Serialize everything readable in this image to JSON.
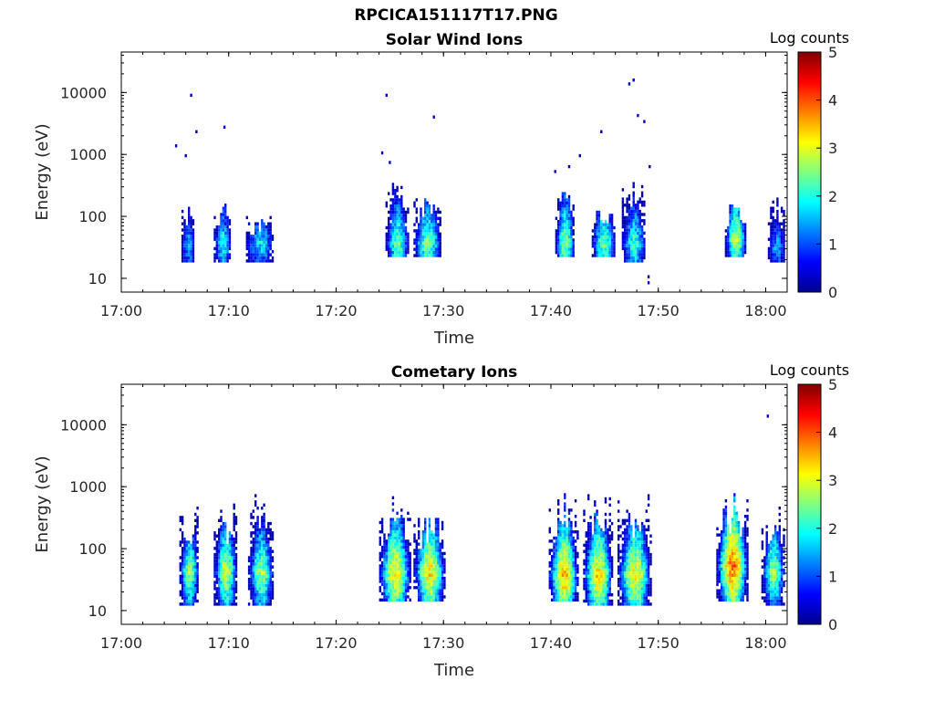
{
  "page_title": "RPCICA151117T17.PNG",
  "colors": {
    "colormap": [
      "#00008f",
      "#0000ff",
      "#0080ff",
      "#00ffff",
      "#80ff80",
      "#ffff00",
      "#ff8000",
      "#ff0000",
      "#800000"
    ],
    "axis": "#000000",
    "background": "#ffffff"
  },
  "chart_data": [
    {
      "type": "heatmap",
      "title": "Solar Wind Ions",
      "xlabel": "Time",
      "ylabel": "Energy (eV)",
      "x_ticks": [
        "17:00",
        "17:10",
        "17:20",
        "17:30",
        "17:40",
        "17:50",
        "18:00"
      ],
      "y_ticks": [
        "10",
        "100",
        "1000",
        "10000"
      ],
      "y_scale": "log",
      "ylim": [
        6,
        45000
      ],
      "xlim_minutes": [
        0,
        62
      ],
      "colorbar": {
        "label": "Log counts",
        "ticks": [
          "0",
          "1",
          "2",
          "3",
          "4",
          "5"
        ],
        "range": [
          0,
          5
        ]
      },
      "bursts": [
        {
          "t0": 5.6,
          "t1": 6.8,
          "emin": 18,
          "emax": 210,
          "peak_e": 30,
          "peak_lc": 1.6
        },
        {
          "t0": 8.6,
          "t1": 10.2,
          "emin": 18,
          "emax": 150,
          "peak_e": 35,
          "peak_lc": 2.0
        },
        {
          "t0": 11.6,
          "t1": 14.2,
          "emin": 18,
          "emax": 100,
          "peak_e": 35,
          "peak_lc": 1.8
        },
        {
          "t0": 24.6,
          "t1": 26.8,
          "emin": 22,
          "emax": 400,
          "peak_e": 35,
          "peak_lc": 2.4
        },
        {
          "t0": 27.2,
          "t1": 29.8,
          "emin": 22,
          "emax": 180,
          "peak_e": 35,
          "peak_lc": 2.5
        },
        {
          "t0": 40.4,
          "t1": 42.2,
          "emin": 22,
          "emax": 250,
          "peak_e": 35,
          "peak_lc": 2.7
        },
        {
          "t0": 43.8,
          "t1": 46.0,
          "emin": 22,
          "emax": 140,
          "peak_e": 35,
          "peak_lc": 2.4
        },
        {
          "t0": 46.6,
          "t1": 48.8,
          "emin": 18,
          "emax": 600,
          "peak_e": 35,
          "peak_lc": 2.2
        },
        {
          "t0": 56.2,
          "t1": 58.2,
          "emin": 22,
          "emax": 160,
          "peak_e": 40,
          "peak_lc": 2.8
        },
        {
          "t0": 60.2,
          "t1": 61.8,
          "emin": 18,
          "emax": 250,
          "peak_e": 30,
          "peak_lc": 1.5
        }
      ],
      "sparse_points": [
        {
          "t": 5.0,
          "e": 1300,
          "lc": 0.3
        },
        {
          "t": 5.9,
          "e": 900,
          "lc": 0.3
        },
        {
          "t": 6.4,
          "e": 8500,
          "lc": 0.3
        },
        {
          "t": 6.9,
          "e": 2200,
          "lc": 0.3
        },
        {
          "t": 9.5,
          "e": 2600,
          "lc": 0.3
        },
        {
          "t": 24.2,
          "e": 1000,
          "lc": 0.3
        },
        {
          "t": 24.6,
          "e": 8500,
          "lc": 0.3
        },
        {
          "t": 24.9,
          "e": 700,
          "lc": 0.3
        },
        {
          "t": 29.0,
          "e": 3800,
          "lc": 0.3
        },
        {
          "t": 40.3,
          "e": 500,
          "lc": 0.3
        },
        {
          "t": 41.6,
          "e": 600,
          "lc": 0.3
        },
        {
          "t": 42.6,
          "e": 900,
          "lc": 0.3
        },
        {
          "t": 44.6,
          "e": 2200,
          "lc": 0.3
        },
        {
          "t": 47.2,
          "e": 13000,
          "lc": 0.3
        },
        {
          "t": 47.6,
          "e": 15000,
          "lc": 0.3
        },
        {
          "t": 48.0,
          "e": 4000,
          "lc": 0.3
        },
        {
          "t": 48.6,
          "e": 3200,
          "lc": 0.3
        },
        {
          "t": 49.0,
          "e": 8,
          "lc": 0.3
        },
        {
          "t": 49.0,
          "e": 10,
          "lc": 0.3
        },
        {
          "t": 49.1,
          "e": 600,
          "lc": 0.3
        }
      ]
    },
    {
      "type": "heatmap",
      "title": "Cometary Ions",
      "xlabel": "Time",
      "ylabel": "Energy (eV)",
      "x_ticks": [
        "17:00",
        "17:10",
        "17:20",
        "17:30",
        "17:40",
        "17:50",
        "18:00"
      ],
      "y_ticks": [
        "10",
        "100",
        "1000",
        "10000"
      ],
      "y_scale": "log",
      "ylim": [
        6,
        45000
      ],
      "xlim_minutes": [
        0,
        62
      ],
      "colorbar": {
        "label": "Log counts",
        "ticks": [
          "0",
          "1",
          "2",
          "3",
          "4",
          "5"
        ],
        "range": [
          0,
          5
        ]
      },
      "bursts": [
        {
          "t0": 5.4,
          "t1": 7.2,
          "emin": 12,
          "emax": 600,
          "peak_e": 40,
          "peak_lc": 2.6
        },
        {
          "t0": 8.6,
          "t1": 10.8,
          "emin": 12,
          "emax": 550,
          "peak_e": 40,
          "peak_lc": 2.9
        },
        {
          "t0": 11.8,
          "t1": 14.2,
          "emin": 12,
          "emax": 800,
          "peak_e": 38,
          "peak_lc": 2.7
        },
        {
          "t0": 24.0,
          "t1": 27.0,
          "emin": 14,
          "emax": 700,
          "peak_e": 38,
          "peak_lc": 3.3
        },
        {
          "t0": 27.2,
          "t1": 30.2,
          "emin": 14,
          "emax": 330,
          "peak_e": 38,
          "peak_lc": 3.3
        },
        {
          "t0": 39.8,
          "t1": 42.6,
          "emin": 14,
          "emax": 900,
          "peak_e": 35,
          "peak_lc": 3.5
        },
        {
          "t0": 43.0,
          "t1": 45.8,
          "emin": 12,
          "emax": 900,
          "peak_e": 36,
          "peak_lc": 3.4
        },
        {
          "t0": 46.2,
          "t1": 49.4,
          "emin": 12,
          "emax": 1000,
          "peak_e": 36,
          "peak_lc": 3.2
        },
        {
          "t0": 55.4,
          "t1": 58.4,
          "emin": 14,
          "emax": 800,
          "peak_e": 50,
          "peak_lc": 3.9
        },
        {
          "t0": 59.6,
          "t1": 61.8,
          "emin": 12,
          "emax": 600,
          "peak_e": 40,
          "peak_lc": 2.7
        }
      ],
      "sparse_points": [
        {
          "t": 60.1,
          "e": 13000,
          "lc": 0.3
        }
      ]
    }
  ]
}
